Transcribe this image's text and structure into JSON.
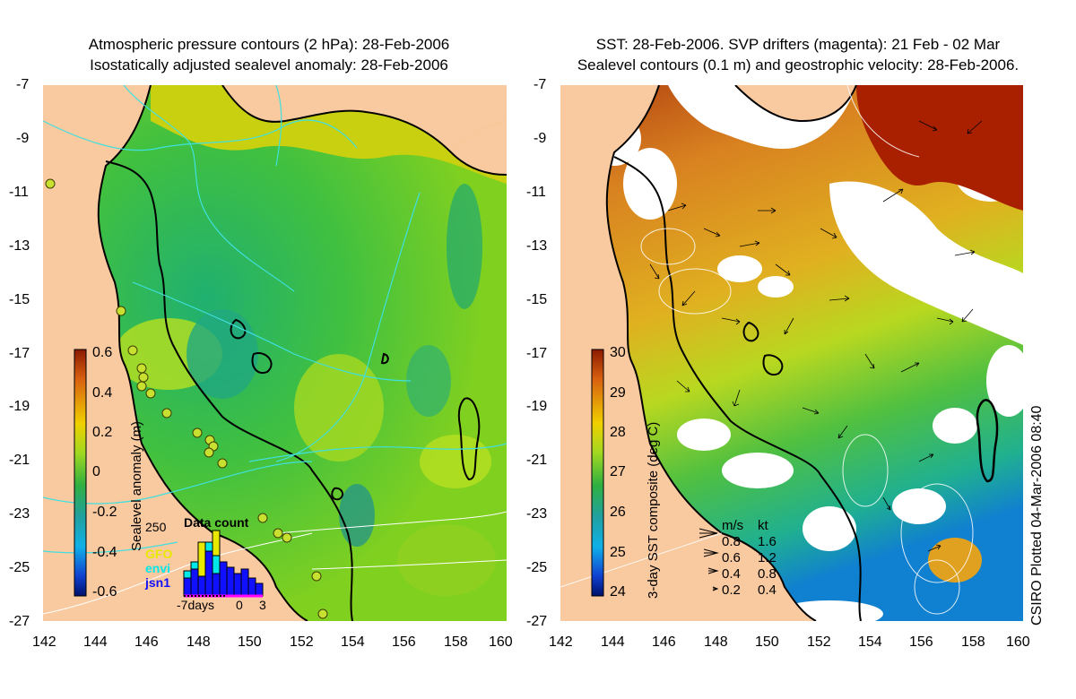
{
  "left_panel": {
    "title_line1": "Atmospheric pressure contours (2 hPa): 28-Feb-2006",
    "title_line2": "Isostatically adjusted sealevel anomaly: 28-Feb-2006",
    "colorbar": {
      "label": "Sealevel anomaly (m)",
      "ticks": [
        "0.6",
        "0.4",
        "0.2",
        "0",
        "-0.2",
        "-0.4",
        "-0.6"
      ],
      "range": [
        -0.6,
        0.6
      ]
    },
    "inset": {
      "title": "Data count",
      "ymax_label": "250",
      "x_labels": [
        "-7days",
        "0",
        "3"
      ],
      "satellites": [
        {
          "name": "GFO",
          "color": "#e8e800"
        },
        {
          "name": "envi",
          "color": "#00e8e8"
        },
        {
          "name": "jsn1",
          "color": "#1010ff"
        }
      ]
    }
  },
  "right_panel": {
    "title_line1": "SST: 28-Feb-2006. SVP drifters (magenta): 21 Feb - 02 Mar",
    "title_line2": "Sealevel contours (0.1 m) and geostrophic velocity: 28-Feb-2006.",
    "colorbar": {
      "label": "3-day SST composite (deg C)",
      "ticks": [
        "30",
        "29",
        "28",
        "27",
        "26",
        "25",
        "24"
      ],
      "range": [
        24,
        30
      ]
    },
    "velocity_key": {
      "header_ms": "m/s",
      "header_kt": "kt",
      "rows": [
        {
          "ms": "0.8",
          "kt": "1.6"
        },
        {
          "ms": "0.6",
          "kt": "1.2"
        },
        {
          "ms": "0.4",
          "kt": "0.8"
        },
        {
          "ms": "0.2",
          "kt": "0.4"
        }
      ]
    }
  },
  "axes": {
    "lat_ticks": [
      "-7",
      "-9",
      "-11",
      "-13",
      "-15",
      "-17",
      "-19",
      "-21",
      "-23",
      "-25",
      "-27"
    ],
    "lon_ticks": [
      "142",
      "144",
      "146",
      "148",
      "150",
      "152",
      "154",
      "156",
      "158",
      "160"
    ]
  },
  "credit": "CSIRO Plotted 04-Mar-2006 08:40",
  "colors": {
    "land": "#f9c9a0",
    "coast": "#000000",
    "pressure_contour": "#40e0e0",
    "sealevel_contour": "#ffffff",
    "drifter": "#ff00ff"
  }
}
